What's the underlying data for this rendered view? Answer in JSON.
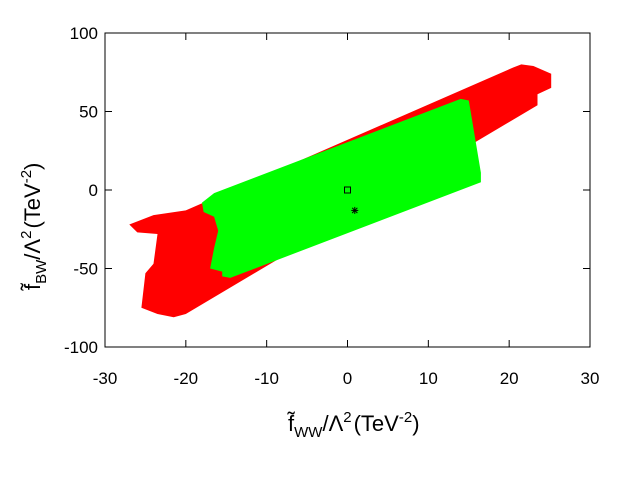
{
  "chart_data": {
    "type": "area",
    "title": "",
    "xlabel": {
      "symbol": "f̃",
      "subscript": "WW",
      "middle": "/Λ",
      "power": "2",
      "unit_open": "(TeV",
      "unit_power": "-2",
      "unit_close": ")"
    },
    "ylabel": {
      "symbol": "f̃",
      "subscript": "BW",
      "middle": "/Λ",
      "power": "2",
      "unit_open": "(TeV",
      "unit_power": "-2",
      "unit_close": ")"
    },
    "xlim": [
      -30,
      30
    ],
    "ylim": [
      -100,
      100
    ],
    "xticks": [
      -30,
      -20,
      -10,
      0,
      10,
      20,
      30
    ],
    "xtick_labels": [
      "-30",
      "-20",
      "-10",
      "0",
      "10",
      "20",
      "30"
    ],
    "yticks": [
      -100,
      -50,
      0,
      50,
      100
    ],
    "ytick_labels": [
      "-100",
      "-50",
      "0",
      "50",
      "100"
    ],
    "grid": false,
    "colors": {
      "outer_region": "#ff0000",
      "inner_region": "#00ff00",
      "markers": "#000000"
    },
    "regions": [
      {
        "key": "outer",
        "color": "#ff0000",
        "polygon": [
          [
            -27,
            -22
          ],
          [
            -26,
            -27
          ],
          [
            -23.5,
            -28
          ],
          [
            -24,
            -47
          ],
          [
            -25,
            -53
          ],
          [
            -25.5,
            -75
          ],
          [
            -23.5,
            -79
          ],
          [
            -21.5,
            -81
          ],
          [
            -20,
            -79
          ],
          [
            23.5,
            54
          ],
          [
            23.5,
            61
          ],
          [
            25.2,
            65
          ],
          [
            25.2,
            74
          ],
          [
            23,
            79
          ],
          [
            21.5,
            80
          ],
          [
            20.5,
            78
          ],
          [
            -20,
            -13
          ],
          [
            -24,
            -16
          ]
        ]
      },
      {
        "key": "inner",
        "color": "#00ff00",
        "polygon": [
          [
            -18,
            -8
          ],
          [
            -16.5,
            -2
          ],
          [
            14,
            58
          ],
          [
            15,
            57
          ],
          [
            16.5,
            11
          ],
          [
            16.5,
            5
          ],
          [
            -14.5,
            -56
          ],
          [
            -15.5,
            -55
          ],
          [
            -15.5,
            -52
          ],
          [
            -17,
            -50
          ],
          [
            -16.5,
            -37
          ],
          [
            -16,
            -26
          ],
          [
            -16.5,
            -17
          ],
          [
            -17.8,
            -14
          ]
        ]
      }
    ],
    "markers": [
      {
        "shape": "square",
        "x": 0,
        "y": 0
      },
      {
        "shape": "asterisk",
        "x": 0.9,
        "y": -13
      }
    ]
  }
}
